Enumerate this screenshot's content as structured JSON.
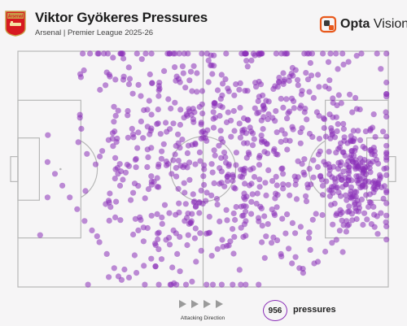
{
  "header": {
    "crest_text": "Arsenal",
    "title": "Viktor Gyökeres Pressures",
    "subtitle": "Arsenal | Premier League 2025-26",
    "brand_main": "Opta",
    "brand_sub": "Vision"
  },
  "footer": {
    "direction_label": "Attacking Direction",
    "count": "956",
    "count_label": "pressures"
  },
  "colors": {
    "marker": "#8b2fb8",
    "pitch_line": "#b8b8b8",
    "arsenal_red": "#d71920",
    "arsenal_gold": "#c8a04a",
    "opta_orange": "#e8591c"
  },
  "chart_data": {
    "type": "scatter",
    "pitch": "Opta 0-100 coordinates, attacking left to right",
    "xlim": [
      0,
      100
    ],
    "ylim": [
      0,
      100
    ],
    "point_color": "#8b2fb8",
    "point_opacity": 0.55,
    "total": 956,
    "sample_points": [
      [
        17,
        89
      ],
      [
        24,
        91
      ],
      [
        30,
        86
      ],
      [
        31,
        82
      ],
      [
        34,
        75
      ],
      [
        38,
        81
      ],
      [
        35,
        68
      ],
      [
        36,
        59
      ],
      [
        38,
        52
      ],
      [
        36,
        47
      ],
      [
        35,
        25
      ],
      [
        41,
        18
      ],
      [
        21,
        52
      ],
      [
        27,
        48
      ],
      [
        6,
        22
      ],
      [
        8,
        38
      ],
      [
        45,
        40
      ],
      [
        48,
        34
      ],
      [
        43,
        14
      ],
      [
        46,
        22
      ],
      [
        52,
        94
      ],
      [
        55,
        90
      ],
      [
        57,
        83
      ],
      [
        60,
        76
      ],
      [
        62,
        71
      ],
      [
        50,
        66
      ],
      [
        53,
        58
      ],
      [
        56,
        55
      ],
      [
        58,
        45
      ],
      [
        61,
        38
      ],
      [
        63,
        31
      ],
      [
        66,
        26
      ],
      [
        69,
        21
      ],
      [
        71,
        14
      ],
      [
        74,
        10
      ],
      [
        76,
        8
      ],
      [
        79,
        95
      ],
      [
        81,
        90
      ],
      [
        83,
        85
      ],
      [
        85,
        80
      ],
      [
        86,
        72
      ],
      [
        88,
        67
      ],
      [
        89,
        61
      ],
      [
        90,
        56
      ],
      [
        91,
        51
      ],
      [
        92,
        47
      ],
      [
        93,
        43
      ],
      [
        94,
        39
      ],
      [
        95,
        36
      ],
      [
        96,
        34
      ],
      [
        97,
        30
      ],
      [
        92,
        32
      ],
      [
        89,
        26
      ],
      [
        86,
        20
      ],
      [
        83,
        15
      ],
      [
        80,
        10
      ],
      [
        77,
        6
      ],
      [
        75,
        92
      ],
      [
        72,
        88
      ],
      [
        69,
        84
      ],
      [
        67,
        79
      ],
      [
        65,
        74
      ],
      [
        63,
        66
      ],
      [
        61,
        61
      ],
      [
        59,
        57
      ],
      [
        57,
        52
      ],
      [
        55,
        49
      ],
      [
        53,
        44
      ],
      [
        51,
        40
      ],
      [
        49,
        36
      ],
      [
        47,
        31
      ],
      [
        45,
        28
      ],
      [
        42,
        24
      ],
      [
        40,
        20
      ],
      [
        38,
        16
      ],
      [
        36,
        12
      ],
      [
        34,
        9
      ],
      [
        32,
        6
      ],
      [
        30,
        4
      ],
      [
        28,
        3
      ],
      [
        26,
        8
      ],
      [
        24,
        14
      ],
      [
        22,
        19
      ],
      [
        20,
        24
      ],
      [
        18,
        28
      ],
      [
        16,
        33
      ],
      [
        14,
        38
      ],
      [
        12,
        43
      ],
      [
        10,
        48
      ],
      [
        8,
        53
      ]
    ],
    "density_hotspots": [
      {
        "x": 91,
        "y": 46,
        "spread_x": 4.5,
        "spread_y": 10,
        "count": 190
      },
      {
        "x": 72,
        "y": 66,
        "spread_x": 16,
        "spread_y": 26,
        "count": 300
      },
      {
        "x": 52,
        "y": 55,
        "spread_x": 15,
        "spread_y": 30,
        "count": 260
      },
      {
        "x": 33,
        "y": 60,
        "spread_x": 12,
        "spread_y": 28,
        "count": 120
      },
      {
        "x": 75,
        "y": 20,
        "spread_x": 15,
        "spread_y": 12,
        "count": 86
      }
    ]
  }
}
